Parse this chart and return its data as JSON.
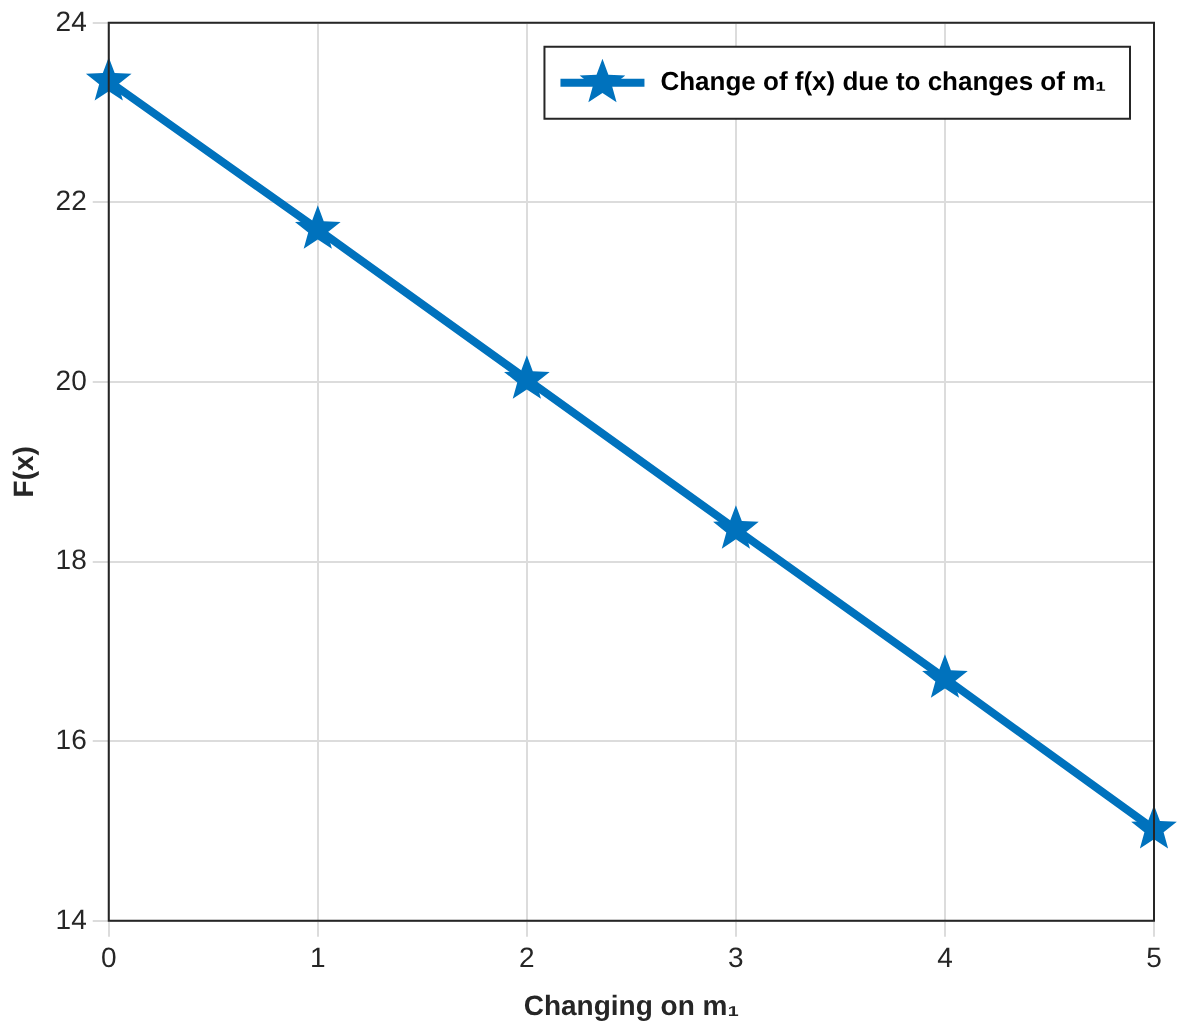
{
  "chart_data": {
    "type": "line",
    "xlabel": "Changing on m₁",
    "ylabel": "F(x)",
    "x": [
      0,
      1,
      2,
      3,
      4,
      5
    ],
    "series": [
      {
        "name": "Change of f(x) due to changes of m₁",
        "color": "#0072bd",
        "values": [
          23.35,
          21.7,
          20.03,
          18.36,
          16.7,
          15.02
        ]
      }
    ],
    "xlim": [
      0,
      5
    ],
    "xticks": [
      0,
      1,
      2,
      3,
      4,
      5
    ],
    "ylim": [
      14,
      24
    ],
    "yticks": [
      14,
      16,
      18,
      20,
      22,
      24
    ],
    "grid": true,
    "legend": "top right",
    "marker": "star",
    "line_style": "solid"
  }
}
